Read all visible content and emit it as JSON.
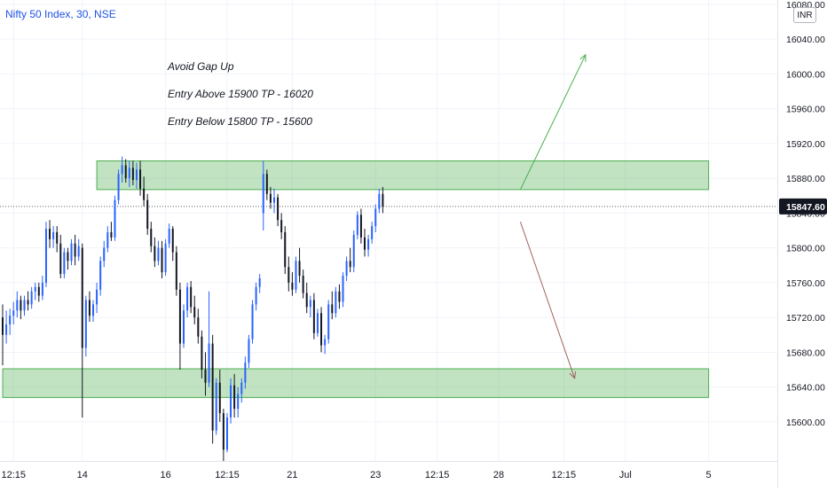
{
  "header": {
    "symbol": "Nifty 50 Index, 30, NSE",
    "currency": "INR"
  },
  "chart_data": {
    "type": "candlestick",
    "ylim": [
      15555,
      16085
    ],
    "y_ticks": [
      16080,
      16040,
      16000,
      15960,
      15920,
      15880,
      15840,
      15800,
      15760,
      15720,
      15680,
      15640,
      15600
    ],
    "y_tick_labels": [
      "16080.00",
      "16040.00",
      "16000.00",
      "15960.00",
      "15920.00",
      "15880.00",
      "15840.00",
      "15800.00",
      "15760.00",
      "15720.00",
      "15680.00",
      "15640.00",
      "15600.00"
    ],
    "x_ticks": [
      {
        "i": 3,
        "label": "12:15"
      },
      {
        "i": 22,
        "label": "14"
      },
      {
        "i": 45,
        "label": "16"
      },
      {
        "i": 62,
        "label": "12:15"
      },
      {
        "i": 80,
        "label": "21"
      },
      {
        "i": 103,
        "label": "23"
      },
      {
        "i": 120,
        "label": "12:15"
      },
      {
        "i": 137,
        "label": "28"
      },
      {
        "i": 155,
        "label": "12:15"
      },
      {
        "i": 172,
        "label": "Jul"
      },
      {
        "i": 195,
        "label": "5"
      }
    ],
    "last_price": 15847.6,
    "last_price_label": "15847.60",
    "annotations": [
      "Avoid Gap Up",
      "Entry Above 15900 TP - 16020",
      "Entry Below 15800 TP - 15600"
    ],
    "zones": [
      {
        "from_i": 26,
        "to_i": 195,
        "low": 15867,
        "high": 15900
      },
      {
        "from_i": 0,
        "to_i": 195,
        "low": 15628,
        "high": 15661
      }
    ],
    "arrows": [
      {
        "from_i": 143,
        "from_price": 15867,
        "to_i": 161,
        "to_price": 16022,
        "color": "#4caf50"
      },
      {
        "from_i": 143,
        "from_price": 15830,
        "to_i": 158,
        "to_price": 15650,
        "color": "#a0645f"
      }
    ],
    "colors": {
      "up": "#2962ff",
      "down": "#131722"
    },
    "candles": [
      [
        15720,
        15735,
        15665,
        15700
      ],
      [
        15700,
        15728,
        15690,
        15712
      ],
      [
        15712,
        15730,
        15700,
        15722
      ],
      [
        15722,
        15738,
        15712,
        15728
      ],
      [
        15728,
        15750,
        15720,
        15740
      ],
      [
        15740,
        15745,
        15718,
        15728
      ],
      [
        15728,
        15745,
        15722,
        15740
      ],
      [
        15740,
        15750,
        15728,
        15735
      ],
      [
        15735,
        15755,
        15730,
        15750
      ],
      [
        15750,
        15760,
        15740,
        15755
      ],
      [
        15755,
        15760,
        15738,
        15745
      ],
      [
        15745,
        15768,
        15740,
        15760
      ],
      [
        15760,
        15830,
        15755,
        15822
      ],
      [
        15822,
        15832,
        15800,
        15810
      ],
      [
        15810,
        15825,
        15800,
        15818
      ],
      [
        15818,
        15825,
        15795,
        15805
      ],
      [
        15805,
        15815,
        15765,
        15770
      ],
      [
        15770,
        15800,
        15765,
        15795
      ],
      [
        15795,
        15800,
        15775,
        15785
      ],
      [
        15785,
        15810,
        15780,
        15805
      ],
      [
        15805,
        15815,
        15780,
        15790
      ],
      [
        15790,
        15810,
        15785,
        15802
      ],
      [
        15800,
        15805,
        15605,
        15685
      ],
      [
        15685,
        15745,
        15675,
        15740
      ],
      [
        15740,
        15750,
        15715,
        15722
      ],
      [
        15722,
        15740,
        15715,
        15735
      ],
      [
        15735,
        15760,
        15725,
        15752
      ],
      [
        15752,
        15790,
        15745,
        15785
      ],
      [
        15785,
        15808,
        15778,
        15800
      ],
      [
        15800,
        15825,
        15795,
        15818
      ],
      [
        15818,
        15830,
        15808,
        15812
      ],
      [
        15812,
        15860,
        15808,
        15855
      ],
      [
        15855,
        15890,
        15850,
        15885
      ],
      [
        15885,
        15905,
        15875,
        15895
      ],
      [
        15895,
        15902,
        15875,
        15880
      ],
      [
        15880,
        15900,
        15870,
        15892
      ],
      [
        15892,
        15900,
        15872,
        15878
      ],
      [
        15878,
        15898,
        15868,
        15890
      ],
      [
        15890,
        15900,
        15860,
        15868
      ],
      [
        15868,
        15882,
        15848,
        15855
      ],
      [
        15855,
        15862,
        15815,
        15822
      ],
      [
        15822,
        15830,
        15795,
        15802
      ],
      [
        15802,
        15812,
        15778,
        15785
      ],
      [
        15785,
        15808,
        15780,
        15800
      ],
      [
        15800,
        15808,
        15765,
        15772
      ],
      [
        15772,
        15810,
        15768,
        15805
      ],
      [
        15805,
        15828,
        15800,
        15822
      ],
      [
        15822,
        15825,
        15785,
        15795
      ],
      [
        15795,
        15802,
        15745,
        15752
      ],
      [
        15752,
        15760,
        15660,
        15690
      ],
      [
        15690,
        15735,
        15685,
        15728
      ],
      [
        15728,
        15760,
        15720,
        15755
      ],
      [
        15755,
        15762,
        15725,
        15732
      ],
      [
        15732,
        15745,
        15712,
        15720
      ],
      [
        15720,
        15730,
        15690,
        15698
      ],
      [
        15698,
        15705,
        15650,
        15660
      ],
      [
        15660,
        15680,
        15630,
        15645
      ],
      [
        15645,
        15750,
        15640,
        15690
      ],
      [
        15690,
        15700,
        15575,
        15590
      ],
      [
        15590,
        15650,
        15585,
        15645
      ],
      [
        15645,
        15660,
        15600,
        15610
      ],
      [
        15610,
        15615,
        15555,
        15568
      ],
      [
        15568,
        15610,
        15565,
        15605
      ],
      [
        15605,
        15650,
        15598,
        15642
      ],
      [
        15642,
        15655,
        15605,
        15615
      ],
      [
        15615,
        15640,
        15605,
        15632
      ],
      [
        15632,
        15650,
        15622,
        15645
      ],
      [
        15645,
        15675,
        15638,
        15668
      ],
      [
        15668,
        15700,
        15662,
        15695
      ],
      [
        15695,
        15740,
        15690,
        15735
      ],
      [
        15735,
        15760,
        15728,
        15755
      ],
      [
        15755,
        15770,
        15748,
        15765
      ],
      [
        15840,
        15900,
        15820,
        15885
      ],
      [
        15885,
        15890,
        15855,
        15862
      ],
      [
        15862,
        15870,
        15845,
        15852
      ],
      [
        15852,
        15868,
        15840,
        15858
      ],
      [
        15858,
        15862,
        15825,
        15832
      ],
      [
        15832,
        15840,
        15810,
        15818
      ],
      [
        15818,
        15825,
        15770,
        15778
      ],
      [
        15778,
        15790,
        15750,
        15760
      ],
      [
        15760,
        15772,
        15745,
        15752
      ],
      [
        15752,
        15790,
        15748,
        15785
      ],
      [
        15785,
        15800,
        15760,
        15768
      ],
      [
        15768,
        15775,
        15742,
        15748
      ],
      [
        15748,
        15760,
        15725,
        15732
      ],
      [
        15732,
        15745,
        15720,
        15740
      ],
      [
        15740,
        15748,
        15695,
        15702
      ],
      [
        15702,
        15730,
        15698,
        15725
      ],
      [
        15725,
        15732,
        15680,
        15688
      ],
      [
        15688,
        15700,
        15678,
        15695
      ],
      [
        15695,
        15740,
        15690,
        15735
      ],
      [
        15735,
        15750,
        15718,
        15725
      ],
      [
        15725,
        15755,
        15720,
        15750
      ],
      [
        15750,
        15758,
        15730,
        15738
      ],
      [
        15738,
        15772,
        15732,
        15768
      ],
      [
        15768,
        15790,
        15762,
        15785
      ],
      [
        15785,
        15800,
        15772,
        15778
      ],
      [
        15778,
        15820,
        15772,
        15815
      ],
      [
        15815,
        15842,
        15810,
        15838
      ],
      [
        15838,
        15845,
        15805,
        15812
      ],
      [
        15812,
        15822,
        15790,
        15798
      ],
      [
        15798,
        15815,
        15790,
        15810
      ],
      [
        15810,
        15830,
        15805,
        15825
      ],
      [
        15825,
        15850,
        15818,
        15845
      ],
      [
        15845,
        15868,
        15840,
        15862
      ],
      [
        15862,
        15870,
        15840,
        15848
      ]
    ]
  }
}
